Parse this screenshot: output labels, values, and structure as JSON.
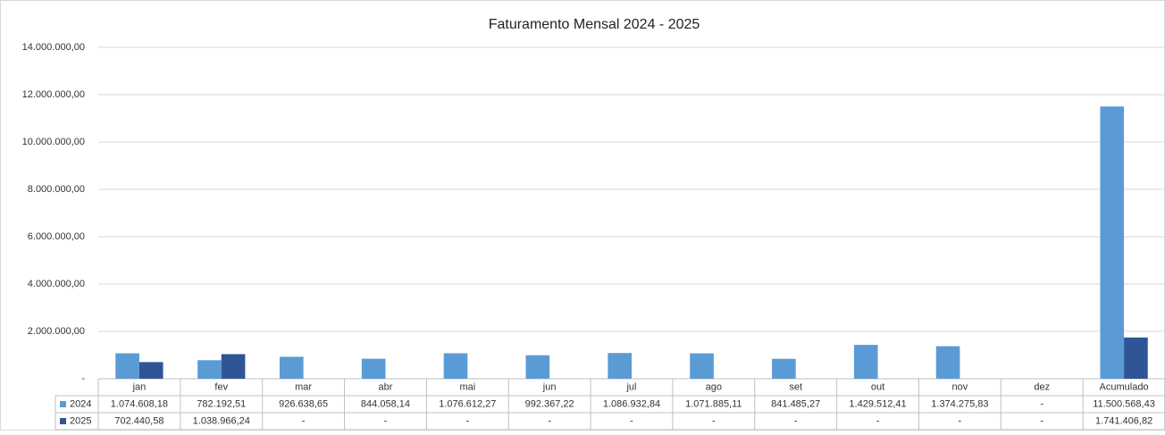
{
  "chart_data": {
    "type": "bar",
    "title": "Faturamento Mensal  2024 - 2025",
    "categories": [
      "jan",
      "fev",
      "mar",
      "abr",
      "mai",
      "jun",
      "jul",
      "ago",
      "set",
      "out",
      "nov",
      "dez",
      "Acumulado"
    ],
    "series": [
      {
        "name": "2024",
        "color": "#5b9bd5",
        "values": [
          1074608.18,
          782192.51,
          926638.65,
          844058.14,
          1076612.27,
          992367.22,
          1086932.84,
          1071885.11,
          841485.27,
          1429512.41,
          1374275.83,
          null,
          11500568.43
        ],
        "value_labels": [
          "1.074.608,18",
          "782.192,51",
          "926.638,65",
          "844.058,14",
          "1.076.612,27",
          "992.367,22",
          "1.086.932,84",
          "1.071.885,11",
          "841.485,27",
          "1.429.512,41",
          "1.374.275,83",
          "-",
          "11.500.568,43"
        ]
      },
      {
        "name": "2025",
        "color": "#2f5597",
        "values": [
          702440.58,
          1038966.24,
          null,
          null,
          null,
          null,
          null,
          null,
          null,
          null,
          null,
          null,
          1741406.82
        ],
        "value_labels": [
          "702.440,58",
          "1.038.966,24",
          "-",
          "-",
          "-",
          "-",
          "-",
          "-",
          "-",
          "-",
          "-",
          "-",
          "1.741.406,82"
        ]
      }
    ],
    "ylim": [
      0,
      14000000
    ],
    "yticks": [
      {
        "value": 0,
        "label": "-"
      },
      {
        "value": 2000000,
        "label": "2.000.000,00"
      },
      {
        "value": 4000000,
        "label": "4.000.000,00"
      },
      {
        "value": 6000000,
        "label": "6.000.000,00"
      },
      {
        "value": 8000000,
        "label": "8.000.000,00"
      },
      {
        "value": 10000000,
        "label": "10.000.000,00"
      },
      {
        "value": 12000000,
        "label": "12.000.000,00"
      },
      {
        "value": 14000000,
        "label": "14.000.000,00"
      }
    ],
    "grid": true
  }
}
